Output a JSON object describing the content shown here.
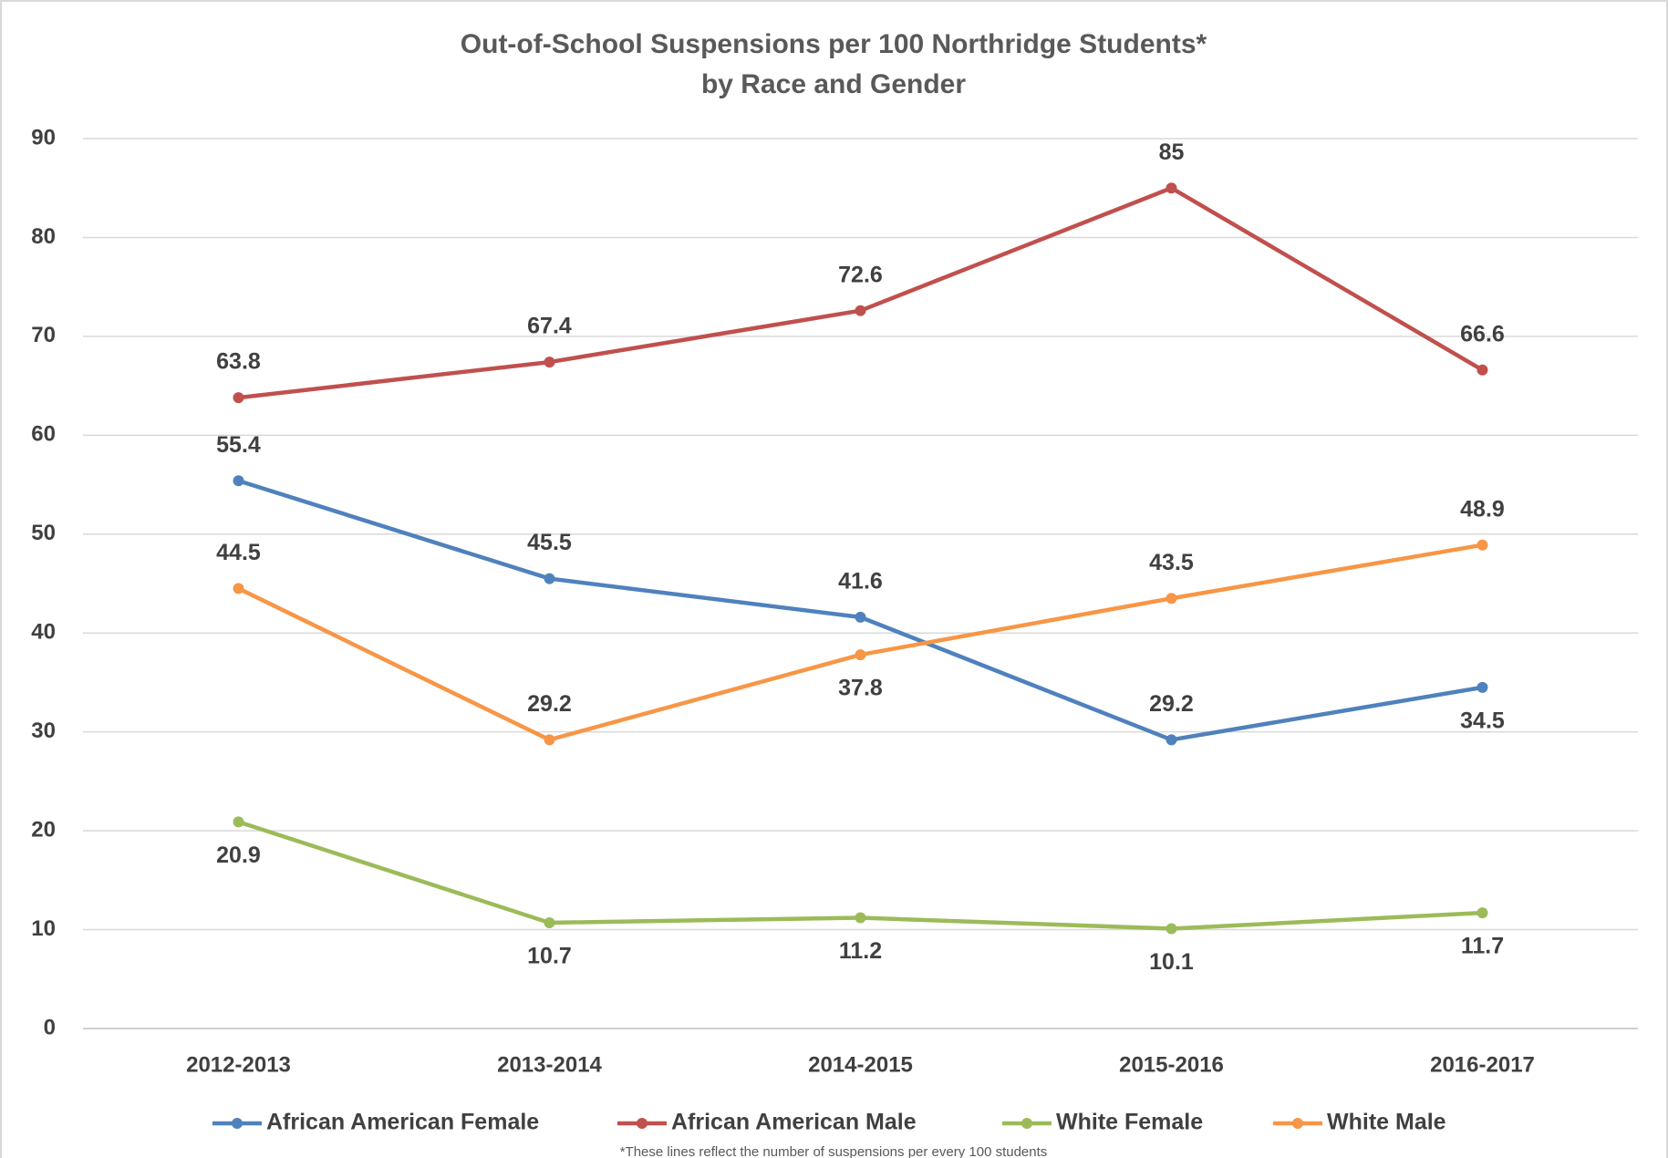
{
  "chart_data": {
    "type": "line",
    "title": "Out-of-School Suspensions per 100 Northridge Students*",
    "subtitle": "by Race and Gender",
    "note": "*These lines reflect the number of suspensions per every 100 students",
    "categories": [
      "2012-2013",
      "2013-2014",
      "2014-2015",
      "2015-2016",
      "2016-2017"
    ],
    "series": [
      {
        "name": "African American Female",
        "color": "#4f81bd",
        "values": [
          55.4,
          45.5,
          41.6,
          29.2,
          34.5
        ]
      },
      {
        "name": "African American Male",
        "color": "#c0504d",
        "values": [
          63.8,
          67.4,
          72.6,
          85,
          66.6
        ]
      },
      {
        "name": "White Female",
        "color": "#9bbb59",
        "values": [
          20.9,
          10.7,
          11.2,
          10.1,
          11.7
        ]
      },
      {
        "name": "White Male",
        "color": "#f79646",
        "values": [
          44.5,
          29.2,
          37.8,
          43.5,
          48.9
        ]
      }
    ],
    "ylim": [
      0,
      90
    ],
    "yticks": [
      0,
      10,
      20,
      30,
      40,
      50,
      60,
      70,
      80,
      90
    ],
    "grid": true,
    "legend": "bottom"
  }
}
